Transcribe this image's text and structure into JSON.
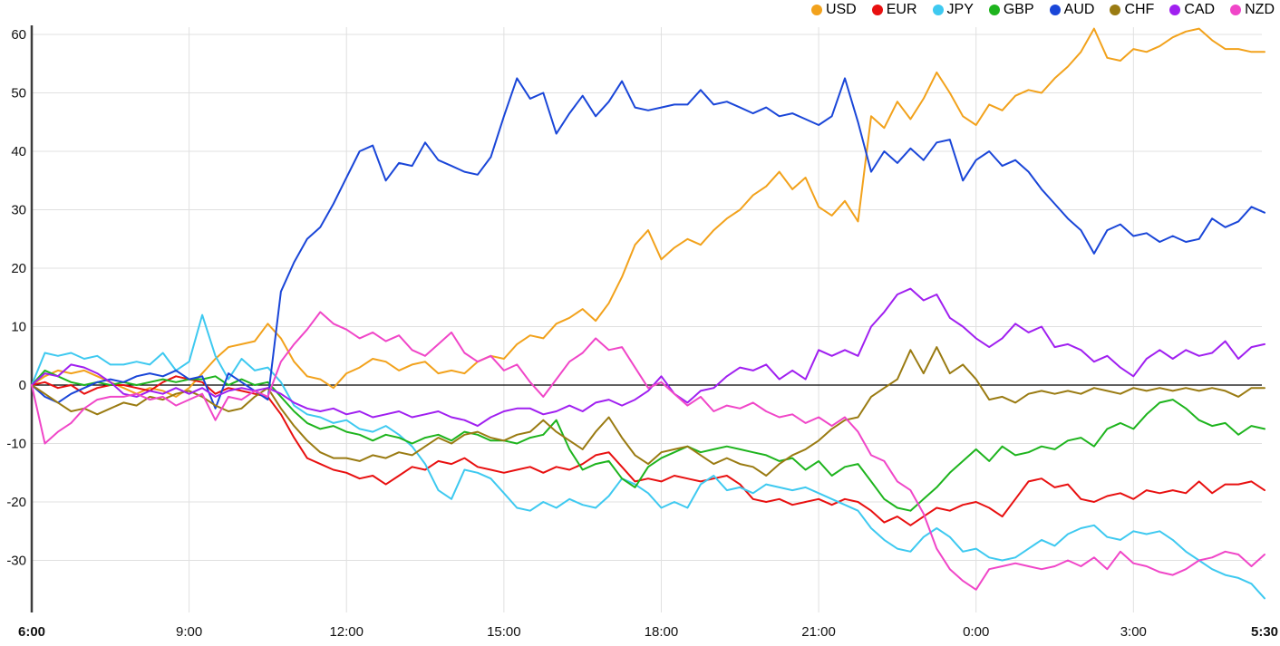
{
  "legend": [
    {
      "id": "usd",
      "label": "USD",
      "color": "#f2a21c"
    },
    {
      "id": "eur",
      "label": "EUR",
      "color": "#e81010"
    },
    {
      "id": "jpy",
      "label": "JPY",
      "color": "#3ec9f0"
    },
    {
      "id": "gbp",
      "label": "GBP",
      "color": "#1eb41e"
    },
    {
      "id": "aud",
      "label": "AUD",
      "color": "#1a46d8"
    },
    {
      "id": "chf",
      "label": "CHF",
      "color": "#9a7b12"
    },
    {
      "id": "cad",
      "label": "CAD",
      "color": "#a020f0"
    },
    {
      "id": "nzd",
      "label": "NZD",
      "color": "#f046c8"
    }
  ],
  "chart_data": {
    "type": "line",
    "title": "",
    "xlabel": "",
    "ylabel": "",
    "grid": true,
    "legend_position": "top-right",
    "x_unit": "time",
    "x_start_label": "6:00",
    "x_end_label": "5:30",
    "x_step_hours": 0.25,
    "x_total_hours": 23.5,
    "ylim": [
      -38,
      62
    ],
    "y_ticks": [
      60,
      50,
      40,
      30,
      20,
      10,
      0,
      -10,
      -20,
      -30
    ],
    "x_ticks": [
      {
        "label": "6:00",
        "t": 0,
        "bold": true
      },
      {
        "label": "9:00",
        "t": 3,
        "bold": false
      },
      {
        "label": "12:00",
        "t": 6,
        "bold": false
      },
      {
        "label": "15:00",
        "t": 9,
        "bold": false
      },
      {
        "label": "18:00",
        "t": 12,
        "bold": false
      },
      {
        "label": "21:00",
        "t": 15,
        "bold": false
      },
      {
        "label": "0:00",
        "t": 18,
        "bold": false
      },
      {
        "label": "3:00",
        "t": 21,
        "bold": false
      },
      {
        "label": "5:30",
        "t": 23.5,
        "bold": true
      }
    ],
    "series": [
      {
        "name": "USD",
        "color": "#f2a21c",
        "values": [
          0,
          1.5,
          2.5,
          2,
          2.5,
          1.5,
          0.5,
          -0.5,
          -1.5,
          -0.5,
          -1,
          -2,
          -0.5,
          2,
          4.5,
          6.5,
          7,
          7.5,
          10.5,
          8,
          4,
          1.5,
          1,
          -0.5,
          2,
          3,
          4.5,
          4,
          2.5,
          3.5,
          4,
          2,
          2.5,
          2,
          4,
          5,
          4.5,
          7,
          8.5,
          8,
          10.5,
          11.5,
          13,
          11,
          14,
          18.5,
          24,
          26.5,
          21.5,
          23.5,
          25,
          24,
          26.5,
          28.5,
          30,
          32.5,
          34,
          36.5,
          33.5,
          35.5,
          30.5,
          29,
          31.5,
          28,
          46,
          44,
          48.5,
          45.5,
          49,
          53.5,
          50,
          46,
          44.5,
          48,
          47,
          49.5,
          50.5,
          50,
          52.5,
          54.5,
          57,
          61,
          56,
          55.5,
          57.5,
          57,
          58,
          59.5,
          60.5,
          61,
          59,
          57.5,
          57.5,
          57,
          57
        ]
      },
      {
        "name": "EUR",
        "color": "#e81010",
        "values": [
          0,
          0.5,
          -0.5,
          0,
          -1.5,
          -0.5,
          0,
          0,
          -0.5,
          -1,
          0.5,
          1.5,
          1,
          0.5,
          -1.5,
          -0.5,
          -1,
          -1.5,
          -2,
          -5,
          -9,
          -12.5,
          -13.5,
          -14.5,
          -15,
          -16,
          -15.5,
          -17,
          -15.5,
          -14,
          -14.5,
          -13,
          -13.5,
          -12.5,
          -14,
          -14.5,
          -15,
          -14.5,
          -14,
          -15,
          -14,
          -14.5,
          -13.5,
          -12,
          -11.5,
          -14,
          -16.5,
          -16,
          -16.5,
          -15.5,
          -16,
          -16.5,
          -16,
          -15.5,
          -17,
          -19.5,
          -20,
          -19.5,
          -20.5,
          -20,
          -19.5,
          -20.5,
          -19.5,
          -20,
          -21.5,
          -23.5,
          -22.5,
          -24,
          -22.5,
          -21,
          -21.5,
          -20.5,
          -20,
          -21,
          -22.5,
          -19.5,
          -16.5,
          -16,
          -17.5,
          -17,
          -19.5,
          -20,
          -19,
          -18.5,
          -19.5,
          -18,
          -18.5,
          -18,
          -18.5,
          -16.5,
          -18.5,
          -17,
          -17,
          -16.5,
          -18
        ]
      },
      {
        "name": "JPY",
        "color": "#3ec9f0",
        "values": [
          0,
          5.5,
          5,
          5.5,
          4.5,
          5,
          3.5,
          3.5,
          4,
          3.5,
          5.5,
          2.5,
          4,
          12,
          5,
          1,
          4.5,
          2.5,
          3,
          0.5,
          -3.5,
          -5,
          -5.5,
          -6.5,
          -6,
          -7.5,
          -8,
          -7,
          -8.5,
          -10.5,
          -13.5,
          -18,
          -19.5,
          -14.5,
          -15,
          -16,
          -18.5,
          -21,
          -21.5,
          -20,
          -21,
          -19.5,
          -20.5,
          -21,
          -19,
          -16,
          -17,
          -18.5,
          -21,
          -20,
          -21,
          -17,
          -15.5,
          -18,
          -17.5,
          -18.5,
          -17,
          -17.5,
          -18,
          -17.5,
          -18.5,
          -19.5,
          -20.5,
          -21.5,
          -24.5,
          -26.5,
          -28,
          -28.5,
          -26,
          -24.5,
          -26,
          -28.5,
          -28,
          -29.5,
          -30,
          -29.5,
          -28,
          -26.5,
          -27.5,
          -25.5,
          -24.5,
          -24,
          -26,
          -26.5,
          -25,
          -25.5,
          -25,
          -26.5,
          -28.5,
          -30,
          -31.5,
          -32.5,
          -33,
          -34,
          -36.5
        ]
      },
      {
        "name": "GBP",
        "color": "#1eb41e",
        "values": [
          0,
          2.5,
          1.5,
          0.5,
          0,
          0.5,
          0,
          0.5,
          0,
          0.5,
          1,
          0.5,
          1,
          1,
          1.5,
          0,
          1,
          0,
          0.5,
          -2,
          -4.5,
          -6.5,
          -7.5,
          -7,
          -8,
          -8.5,
          -9.5,
          -8.5,
          -9,
          -10,
          -9,
          -8.5,
          -9.5,
          -8,
          -8.5,
          -9.5,
          -9.5,
          -10,
          -9,
          -8.5,
          -6,
          -11,
          -14.5,
          -13.5,
          -13,
          -16,
          -17.5,
          -14,
          -12.5,
          -11.5,
          -10.5,
          -11.5,
          -11,
          -10.5,
          -11,
          -11.5,
          -12,
          -13,
          -12.5,
          -14.5,
          -13,
          -15.5,
          -14,
          -13.5,
          -16.5,
          -19.5,
          -21,
          -21.5,
          -19.5,
          -17.5,
          -15,
          -13,
          -11,
          -13,
          -10.5,
          -12,
          -11.5,
          -10.5,
          -11,
          -9.5,
          -9,
          -10.5,
          -7.5,
          -6.5,
          -7.5,
          -5,
          -3,
          -2.5,
          -4,
          -6,
          -7,
          -6.5,
          -8.5,
          -7,
          -7.5
        ]
      },
      {
        "name": "AUD",
        "color": "#1a46d8",
        "values": [
          0,
          -2,
          -3,
          -1.5,
          -0.5,
          0.5,
          1,
          0.5,
          1.5,
          2,
          1.5,
          2.5,
          1,
          1.5,
          -4,
          2,
          0.5,
          -1,
          -2.5,
          16,
          21,
          25,
          27,
          31,
          35.5,
          40,
          41,
          35,
          38,
          37.5,
          41.5,
          38.5,
          37.5,
          36.5,
          36,
          39,
          46,
          52.5,
          49,
          50,
          43,
          46.5,
          49.5,
          46,
          48.5,
          52,
          47.5,
          47,
          47.5,
          48,
          48,
          50.5,
          48,
          48.5,
          47.5,
          46.5,
          47.5,
          46,
          46.5,
          45.5,
          44.5,
          46,
          52.5,
          45,
          36.5,
          40,
          38,
          40.5,
          38.5,
          41.5,
          42,
          35,
          38.5,
          40,
          37.5,
          38.5,
          36.5,
          33.5,
          31,
          28.5,
          26.5,
          22.5,
          26.5,
          27.5,
          25.5,
          26,
          24.5,
          25.5,
          24.5,
          25,
          28.5,
          27,
          28,
          30.5,
          29.5
        ]
      },
      {
        "name": "CHF",
        "color": "#9a7b12",
        "values": [
          0,
          -1.5,
          -3,
          -4.5,
          -4,
          -5,
          -4,
          -3,
          -3.5,
          -2,
          -2.5,
          -1.5,
          -1,
          -2,
          -3.5,
          -4.5,
          -4,
          -2,
          -0.5,
          -4,
          -7,
          -9.5,
          -11.5,
          -12.5,
          -12.5,
          -13,
          -12,
          -12.5,
          -11.5,
          -12,
          -10.5,
          -9,
          -10,
          -8.5,
          -8,
          -9,
          -9.5,
          -8.5,
          -8,
          -6,
          -8,
          -9.5,
          -11,
          -8,
          -5.5,
          -9,
          -12,
          -13.5,
          -11.5,
          -11,
          -10.5,
          -12,
          -13.5,
          -12.5,
          -13.5,
          -14,
          -15.5,
          -13.5,
          -12,
          -11,
          -9.5,
          -7.5,
          -6,
          -5.5,
          -2,
          -0.5,
          1,
          6,
          2,
          6.5,
          2,
          3.5,
          1,
          -2.5,
          -2,
          -3,
          -1.5,
          -1,
          -1.5,
          -1,
          -1.5,
          -0.5,
          -1,
          -1.5,
          -0.5,
          -1,
          -0.5,
          -1,
          -0.5,
          -1,
          -0.5,
          -1,
          -2,
          -0.5,
          -0.5
        ]
      },
      {
        "name": "CAD",
        "color": "#a020f0",
        "values": [
          0,
          2,
          1.5,
          3.5,
          3,
          2,
          0.5,
          -1.5,
          -2,
          -1,
          -1.5,
          -0.5,
          -1.5,
          -0.5,
          -2,
          -1,
          -0.5,
          -1,
          -0.5,
          -1.5,
          -3,
          -4,
          -4.5,
          -4,
          -5,
          -4.5,
          -5.5,
          -5,
          -4.5,
          -5.5,
          -5,
          -4.5,
          -5.5,
          -6,
          -7,
          -5.5,
          -4.5,
          -4,
          -4,
          -5,
          -4.5,
          -3.5,
          -4.5,
          -3,
          -2.5,
          -3.5,
          -2.5,
          -1,
          1.5,
          -1.5,
          -3,
          -1,
          -0.5,
          1.5,
          3,
          2.5,
          3.5,
          1,
          2.5,
          1,
          6,
          5,
          6,
          5,
          10,
          12.5,
          15.5,
          16.5,
          14.5,
          15.5,
          11.5,
          10,
          8,
          6.5,
          8,
          10.5,
          9,
          10,
          6.5,
          7,
          6,
          4,
          5,
          3,
          1.5,
          4.5,
          6,
          4.5,
          6,
          5,
          5.5,
          7.5,
          4.5,
          6.5,
          7
        ]
      },
      {
        "name": "NZD",
        "color": "#f046c8",
        "values": [
          0,
          -10,
          -8,
          -6.5,
          -4,
          -2.5,
          -2,
          -2,
          -1.5,
          -2.5,
          -2,
          -3.5,
          -2.5,
          -1.5,
          -6,
          -2,
          -2.5,
          -1,
          -2,
          4,
          7,
          9.5,
          12.5,
          10.5,
          9.5,
          8,
          9,
          7.5,
          8.5,
          6,
          5,
          7,
          9,
          5.5,
          4,
          5,
          2.5,
          3.5,
          0.5,
          -2,
          1,
          4,
          5.5,
          8,
          6,
          6.5,
          3,
          -0.5,
          0.5,
          -1.5,
          -3.5,
          -2,
          -4.5,
          -3.5,
          -4,
          -3,
          -4.5,
          -5.5,
          -5,
          -6.5,
          -5.5,
          -7,
          -5.5,
          -8,
          -12,
          -13,
          -16.5,
          -18,
          -22,
          -28,
          -31.5,
          -33.5,
          -35,
          -31.5,
          -31,
          -30.5,
          -31,
          -31.5,
          -31,
          -30,
          -31,
          -29.5,
          -31.5,
          -28.5,
          -30.5,
          -31,
          -32,
          -32.5,
          -31.5,
          -30,
          -29.5,
          -28.5,
          -29,
          -31,
          -29
        ]
      }
    ],
    "style": {
      "grid_color": "#e0e0e0",
      "zero_line_color": "#000000",
      "axis_line_color": "#3c3c3c",
      "tick_label_color": "#111111",
      "background": "#ffffff",
      "line_width": 2
    }
  }
}
